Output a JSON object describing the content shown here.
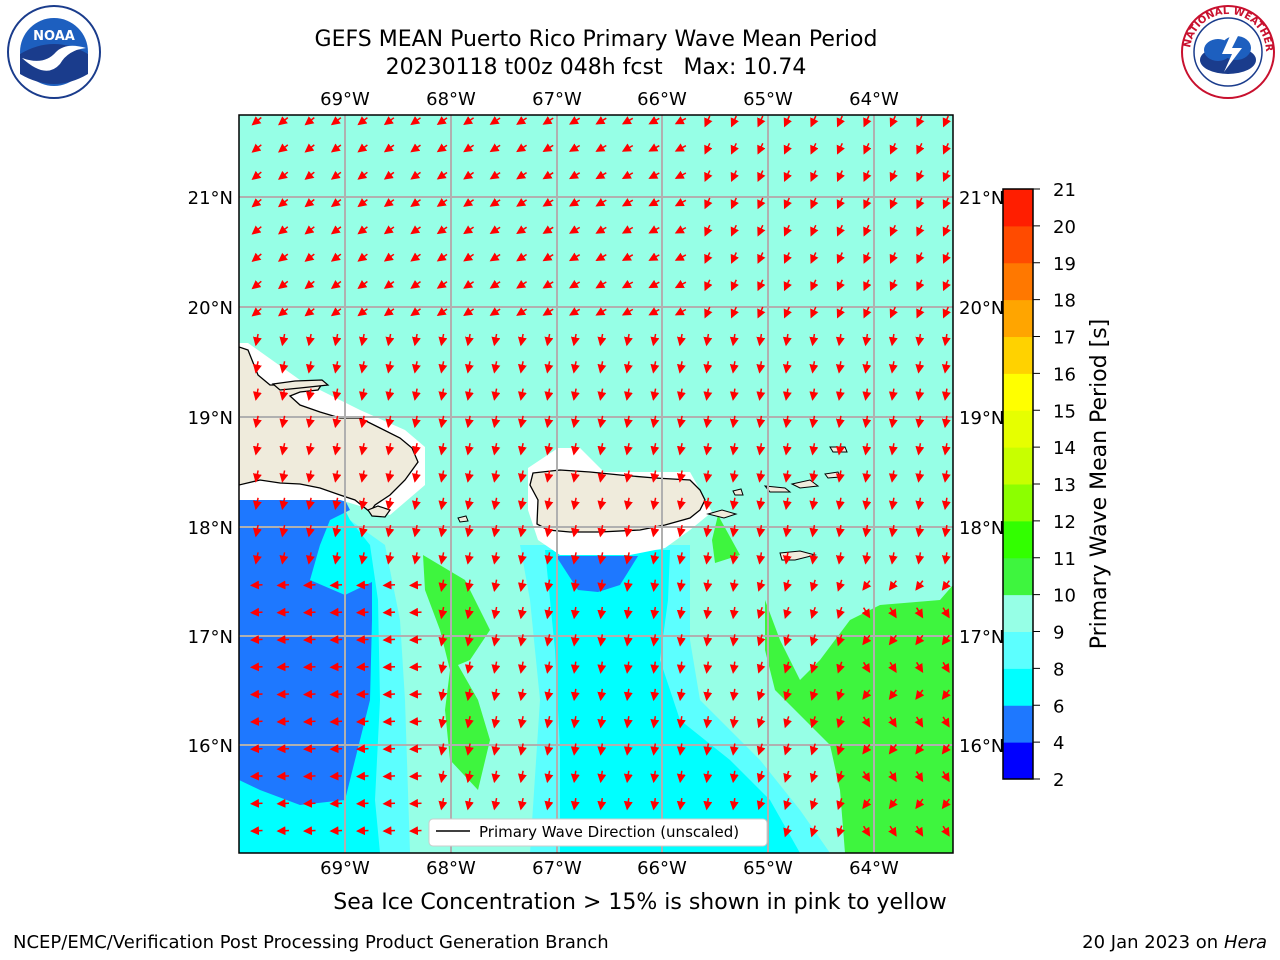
{
  "header": {
    "title_line1": "GEFS MEAN Puerto Rico Primary Wave Mean Period",
    "title_line2": "20230118 t00z 048h fcst   Max: 10.74"
  },
  "logos": {
    "left": {
      "text": "NOAA",
      "icon": "noaa-logo"
    },
    "right": {
      "text": "NATIONAL WEATHER SERVICE",
      "icon": "nws-logo"
    }
  },
  "map": {
    "lon_labels": [
      "69°W",
      "68°W",
      "67°W",
      "66°W",
      "65°W",
      "64°W"
    ],
    "lat_labels": [
      "21°N",
      "20°N",
      "19°N",
      "18°N",
      "17°N",
      "16°N"
    ],
    "legend_label": "Primary Wave Direction (unscaled)",
    "arrow_color": "#ff0000",
    "land_color": "#efebdc"
  },
  "colorbar": {
    "label": "Primary Wave Mean Period [s]",
    "ticks": [
      "2",
      "4",
      "6",
      "8",
      "9",
      "10",
      "11",
      "12",
      "13",
      "14",
      "15",
      "16",
      "17",
      "18",
      "19",
      "20",
      "21"
    ],
    "colors": [
      "#0000ff",
      "#1e78ff",
      "#00ffff",
      "#5cffff",
      "#96ffe6",
      "#3ef53e",
      "#32ff00",
      "#8cff00",
      "#c8ff00",
      "#e6ff00",
      "#ffff00",
      "#ffd200",
      "#ffa500",
      "#ff7800",
      "#ff4b00",
      "#ff1e00"
    ]
  },
  "subnote": "Sea Ice Concentration > 15% is shown in pink to yellow",
  "footer": {
    "left": "NCEP/EMC/Verification Post Processing Product Generation Branch",
    "right_date": "20 Jan 2023 on ",
    "right_machine": "Hera"
  }
}
